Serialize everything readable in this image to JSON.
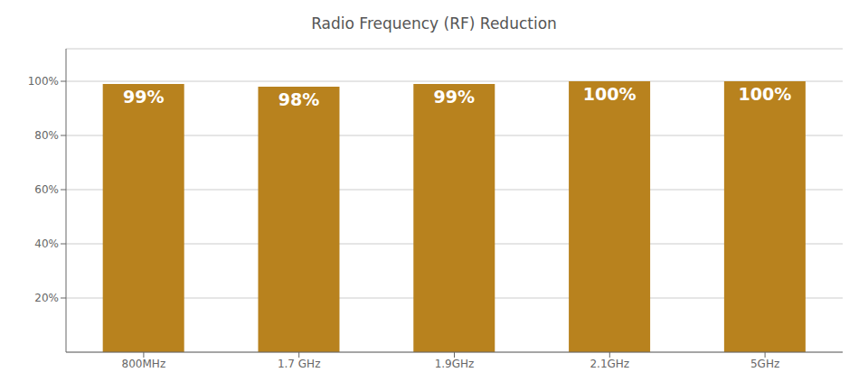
{
  "chart_data": {
    "type": "bar",
    "title": "Radio Frequency (RF) Reduction",
    "categories": [
      "800MHz",
      "1.7 GHz",
      "1.9GHz",
      "2.1GHz",
      "5GHz"
    ],
    "values": [
      99,
      98,
      99,
      100,
      100
    ],
    "data_labels": true,
    "value_labels": [
      "99%",
      "98%",
      "99%",
      "100%",
      "100%"
    ],
    "color": "#B8821E",
    "ylim": [
      0,
      112
    ],
    "yticks": [
      {
        "value": 20,
        "label": "20%"
      },
      {
        "value": 40,
        "label": "40%"
      },
      {
        "value": 60,
        "label": "60%"
      },
      {
        "value": 80,
        "label": "80%"
      },
      {
        "value": 100,
        "label": "100%"
      }
    ],
    "grid": true
  }
}
